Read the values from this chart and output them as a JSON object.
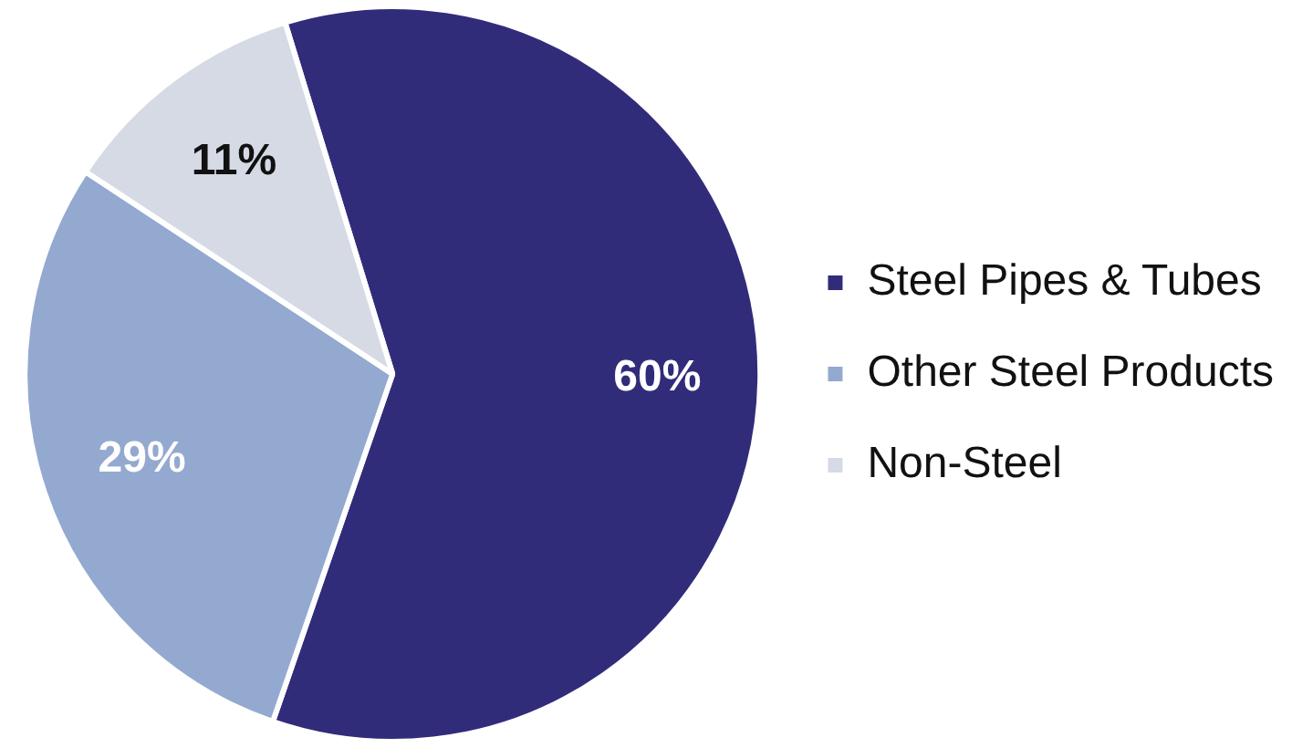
{
  "chart_data": {
    "type": "pie",
    "categories": [
      "Steel Pipes & Tubes",
      "Other Steel Products",
      "Non-Steel"
    ],
    "values": [
      60,
      29,
      11
    ],
    "colors": [
      "#312c7a",
      "#94a9d0",
      "#d5dae5"
    ],
    "value_labels": [
      "60%",
      "29%",
      "11%"
    ],
    "legend": "right"
  }
}
